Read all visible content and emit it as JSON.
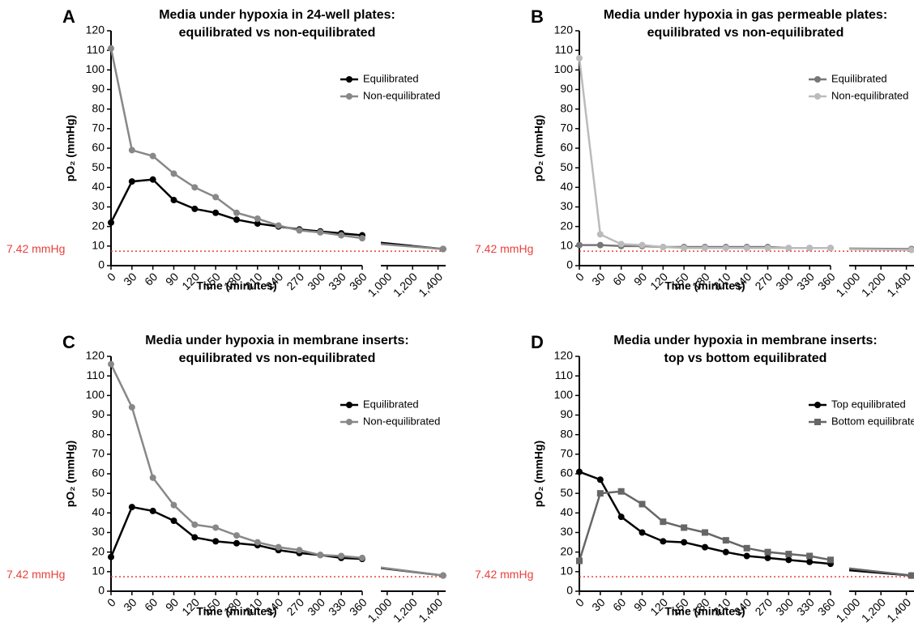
{
  "chart_data": [
    {
      "type": "line",
      "panel": "A",
      "title": [
        "Media under hypoxia in 24-well plates:",
        "equilibrated vs non-equilibrated"
      ],
      "xlabel": "Time (minutes)",
      "ylabel": "pO₂ (mmHg)",
      "x": [
        0,
        30,
        60,
        90,
        120,
        150,
        180,
        210,
        240,
        270,
        300,
        330,
        360,
        1440
      ],
      "xlim": [
        0,
        360
      ],
      "xticks": [
        0,
        30,
        60,
        90,
        120,
        150,
        180,
        210,
        240,
        270,
        300,
        330,
        360
      ],
      "x2lim": [
        950,
        1460
      ],
      "x2ticks": [
        {
          "value": 1000,
          "label": "1,000"
        },
        {
          "value": 1200,
          "label": "1,200"
        },
        {
          "value": 1400,
          "label": "1,400"
        }
      ],
      "ylim": [
        0,
        120
      ],
      "yticks": [
        0,
        10,
        20,
        30,
        40,
        50,
        60,
        70,
        80,
        90,
        100,
        110,
        120
      ],
      "reference": {
        "value": 7.42,
        "label": "7.42 mmHg"
      },
      "legend": "upper right",
      "series": [
        {
          "name": "Equilibrated",
          "color": "#000000",
          "marker": "circle",
          "values": [
            22,
            43,
            44,
            33.5,
            29,
            27,
            23.5,
            21.5,
            20,
            18.5,
            17.5,
            16.5,
            15.5,
            8.5
          ]
        },
        {
          "name": "Non-equilibrated",
          "color": "#888888",
          "marker": "circle",
          "values": [
            111,
            59,
            56,
            47,
            40,
            35,
            27,
            24,
            20.5,
            18,
            17,
            15.5,
            14,
            8.5
          ]
        }
      ]
    },
    {
      "type": "line",
      "panel": "B",
      "title": [
        "Media under hypoxia in gas permeable plates:",
        "equilibrated vs non-equilibrated"
      ],
      "xlabel": "Time (minutes)",
      "ylabel": "pO₂ (mmHg)",
      "x": [
        0,
        30,
        60,
        90,
        120,
        150,
        180,
        210,
        240,
        270,
        300,
        330,
        360,
        1440
      ],
      "xlim": [
        0,
        360
      ],
      "xticks": [
        0,
        30,
        60,
        90,
        120,
        150,
        180,
        210,
        240,
        270,
        300,
        330,
        360
      ],
      "x2lim": [
        950,
        1460
      ],
      "x2ticks": [
        {
          "value": 1000,
          "label": "1,000"
        },
        {
          "value": 1200,
          "label": "1,200"
        },
        {
          "value": 1400,
          "label": "1,400"
        }
      ],
      "ylim": [
        0,
        120
      ],
      "yticks": [
        0,
        10,
        20,
        30,
        40,
        50,
        60,
        70,
        80,
        90,
        100,
        110,
        120
      ],
      "reference": {
        "value": 7.42,
        "label": "7.42 mmHg"
      },
      "legend": "upper right",
      "series": [
        {
          "name": "Equilibrated",
          "color": "#777777",
          "marker": "circle",
          "values": [
            10.5,
            10.5,
            10,
            10,
            9.5,
            9.5,
            9.5,
            9.5,
            9.5,
            9.5,
            9,
            9,
            9,
            8.5
          ]
        },
        {
          "name": "Non-equilibrated",
          "color": "#bbbbbb",
          "marker": "circle",
          "values": [
            106,
            16,
            11,
            10.5,
            9.5,
            9,
            9,
            9,
            9,
            9,
            9,
            9,
            9,
            8
          ]
        }
      ]
    },
    {
      "type": "line",
      "panel": "C",
      "title": [
        "Media under hypoxia in membrane inserts:",
        "equilibrated vs non-equilibrated"
      ],
      "xlabel": "Time (minutes)",
      "ylabel": "pO₂ (mmHg)",
      "x": [
        0,
        30,
        60,
        90,
        120,
        150,
        180,
        210,
        240,
        270,
        300,
        330,
        360,
        1440
      ],
      "xlim": [
        0,
        360
      ],
      "xticks": [
        0,
        30,
        60,
        90,
        120,
        150,
        180,
        210,
        240,
        270,
        300,
        330,
        360
      ],
      "x2lim": [
        950,
        1460
      ],
      "x2ticks": [
        {
          "value": 1000,
          "label": "1,000"
        },
        {
          "value": 1200,
          "label": "1,200"
        },
        {
          "value": 1400,
          "label": "1,400"
        }
      ],
      "ylim": [
        0,
        120
      ],
      "yticks": [
        0,
        10,
        20,
        30,
        40,
        50,
        60,
        70,
        80,
        90,
        100,
        110,
        120
      ],
      "reference": {
        "value": 7.42,
        "label": "7.42 mmHg"
      },
      "legend": "upper right",
      "series": [
        {
          "name": "Equilibrated",
          "color": "#000000",
          "marker": "circle",
          "values": [
            17.5,
            43,
            41,
            36,
            27.5,
            25.5,
            24.5,
            23.5,
            21,
            19.5,
            18.5,
            17,
            16.5,
            8
          ]
        },
        {
          "name": "Non-equilibrated",
          "color": "#888888",
          "marker": "circle",
          "values": [
            116,
            94,
            58,
            44,
            34,
            32.5,
            28.5,
            25,
            22.5,
            21,
            18.5,
            18,
            17,
            8
          ]
        }
      ]
    },
    {
      "type": "line",
      "panel": "D",
      "title": [
        "Media under hypoxia in membrane inserts:",
        "top vs bottom equilibrated"
      ],
      "xlabel": "Time (minutes)",
      "ylabel": "pO₂ (mmHg)",
      "x": [
        0,
        30,
        60,
        90,
        120,
        150,
        180,
        210,
        240,
        270,
        300,
        330,
        360,
        1440
      ],
      "xlim": [
        0,
        360
      ],
      "xticks": [
        0,
        30,
        60,
        90,
        120,
        150,
        180,
        210,
        240,
        270,
        300,
        330,
        360
      ],
      "x2lim": [
        950,
        1460
      ],
      "x2ticks": [
        {
          "value": 1000,
          "label": "1,000"
        },
        {
          "value": 1200,
          "label": "1,200"
        },
        {
          "value": 1400,
          "label": "1,400"
        }
      ],
      "ylim": [
        0,
        120
      ],
      "yticks": [
        0,
        10,
        20,
        30,
        40,
        50,
        60,
        70,
        80,
        90,
        100,
        110,
        120
      ],
      "reference": {
        "value": 7.42,
        "label": "7.42 mmHg"
      },
      "legend": "upper right",
      "series": [
        {
          "name": "Top equilibrated",
          "color": "#000000",
          "marker": "circle",
          "values": [
            61,
            57,
            38,
            30,
            25.5,
            25,
            22.5,
            20,
            18,
            17,
            16,
            15,
            14,
            8
          ]
        },
        {
          "name": "Bottom equilibrated",
          "color": "#666666",
          "marker": "square",
          "values": [
            15.5,
            50,
            51,
            44.5,
            35.5,
            32.5,
            30,
            26,
            22,
            20,
            19,
            18,
            16,
            8
          ]
        }
      ]
    }
  ]
}
